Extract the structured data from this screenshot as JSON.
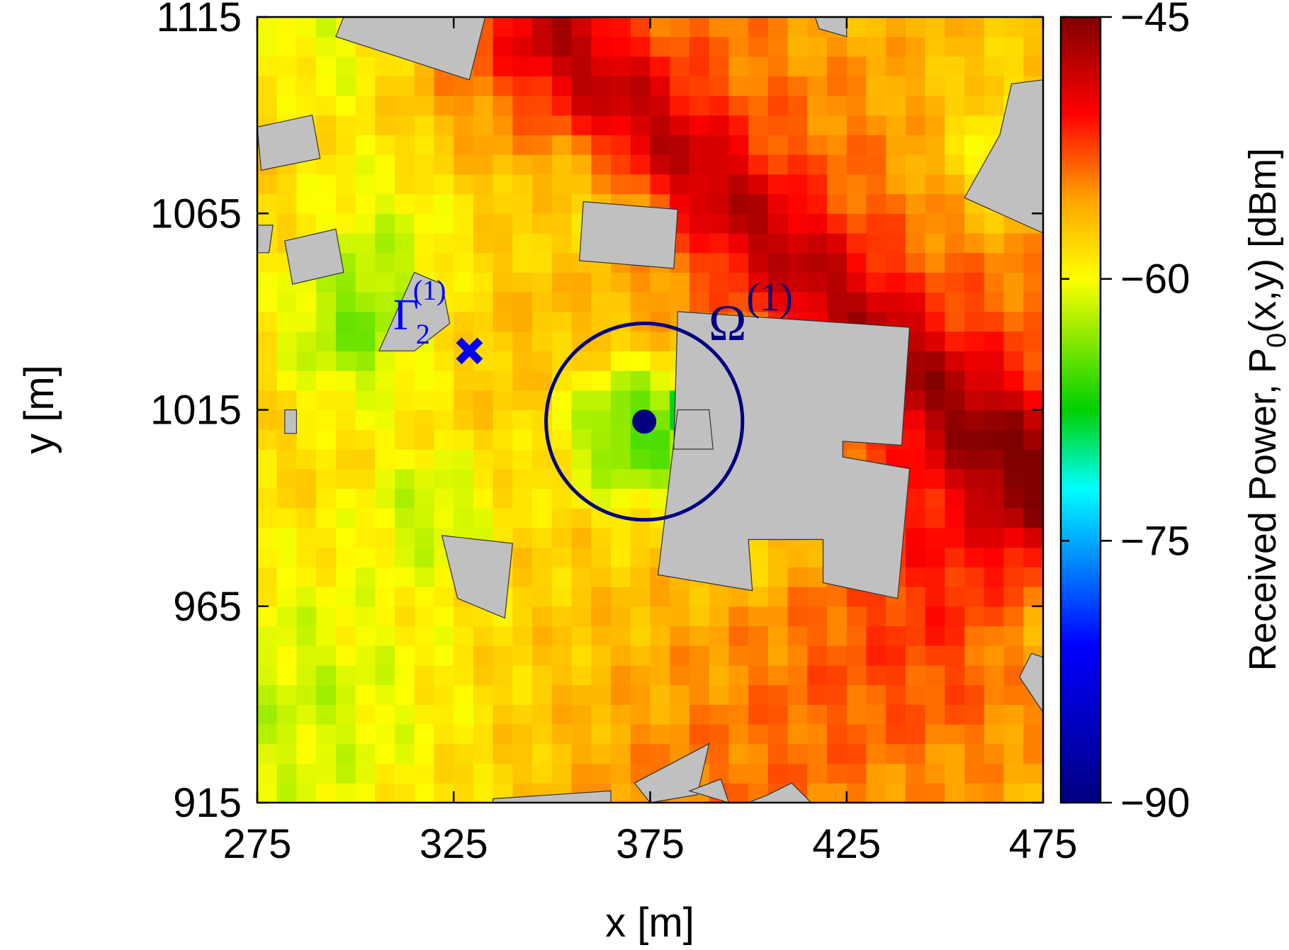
{
  "chart_data": {
    "type": "heatmap",
    "xlabel": "x [m]",
    "ylabel": "y [m]",
    "xlim": [
      275,
      475
    ],
    "ylim": [
      915,
      1115
    ],
    "x_ticks": [
      "275",
      "325",
      "375",
      "425",
      "475"
    ],
    "y_ticks": [
      "915",
      "965",
      "1015",
      "1065",
      "1115"
    ],
    "grid_cell_m": 5,
    "colorbar": {
      "label_prefix": "Received Power, P",
      "label_subscript": "0",
      "label_suffix": "(x,y) [dBm]",
      "min": -90,
      "max": -45,
      "ticks": [
        "−45",
        "−60",
        "−75",
        "−90"
      ],
      "stops": [
        {
          "value": -90,
          "color": "#000080"
        },
        {
          "value": -81,
          "color": "#0000ff"
        },
        {
          "value": -72,
          "color": "#00ffff"
        },
        {
          "value": -67.5,
          "color": "#00d000"
        },
        {
          "value": -60,
          "color": "#ffff00"
        },
        {
          "value": -55.5,
          "color": "#ffa500"
        },
        {
          "value": -50.5,
          "color": "#ff0000"
        },
        {
          "value": -45,
          "color": "#800000"
        }
      ]
    },
    "field_model": {
      "base_dbm": -57.5,
      "ridge": {
        "x1": 350,
        "y1": 1110,
        "x2": 475,
        "y2": 995,
        "sigma_m": 9,
        "peak_dbm": -47.5,
        "halo_sigma_m": 38,
        "halo_dbm": 4.5
      },
      "band": {
        "x1": 395,
        "y1": 915,
        "x2": 475,
        "y2": 985,
        "sigma_m": 30,
        "peak_dbm": 3.5
      },
      "dips": [
        {
          "x": 373,
          "y": 1010,
          "r_m": 14,
          "depth_dbm": -9
        },
        {
          "x": 300,
          "y": 1035,
          "r_m": 14,
          "depth_dbm": -5.5
        },
        {
          "x": 310,
          "y": 1065,
          "r_m": 18,
          "depth_dbm": -4
        },
        {
          "x": 285,
          "y": 940,
          "r_m": 30,
          "depth_dbm": -4
        },
        {
          "x": 295,
          "y": 1110,
          "r_m": 15,
          "depth_dbm": -4.5
        },
        {
          "x": 320,
          "y": 990,
          "r_m": 12,
          "depth_dbm": -4
        },
        {
          "x": 358,
          "y": 1065,
          "r_m": 14,
          "depth_dbm": -3.5
        },
        {
          "x": 465,
          "y": 1080,
          "r_m": 12,
          "depth_dbm": -4
        },
        {
          "x": 405,
          "y": 985,
          "r_m": 12,
          "depth_dbm": -3
        },
        {
          "x": 475,
          "y": 960,
          "r_m": 12,
          "depth_dbm": -4
        }
      ]
    },
    "patches": [
      {
        "x1": 380,
        "y1": 1010,
        "x2": 390,
        "y2": 1020,
        "dbm": -68
      }
    ],
    "buildings": [
      [
        [
          297,
          1115
        ],
        [
          333,
          1115
        ],
        [
          329,
          1099
        ],
        [
          295,
          1110
        ]
      ],
      [
        [
          417,
          1115
        ],
        [
          425,
          1115
        ],
        [
          425,
          1110
        ],
        [
          418,
          1112
        ]
      ],
      [
        [
          275,
          1087
        ],
        [
          289,
          1090
        ],
        [
          291,
          1079
        ],
        [
          276,
          1076
        ]
      ],
      [
        [
          275,
          1062
        ],
        [
          279,
          1062
        ],
        [
          278,
          1055
        ],
        [
          275,
          1055
        ]
      ],
      [
        [
          282,
          1058
        ],
        [
          295,
          1061
        ],
        [
          297,
          1050
        ],
        [
          284,
          1047
        ]
      ],
      [
        [
          315,
          1050
        ],
        [
          322,
          1047
        ],
        [
          324,
          1037
        ],
        [
          315,
          1030
        ],
        [
          306,
          1030
        ]
      ],
      [
        [
          282,
          1015
        ],
        [
          285,
          1015
        ],
        [
          285,
          1009
        ],
        [
          282,
          1009
        ]
      ],
      [
        [
          358,
          1068
        ],
        [
          382,
          1066
        ],
        [
          381,
          1051
        ],
        [
          357,
          1053
        ]
      ],
      [
        [
          467,
          1098
        ],
        [
          475,
          1099
        ],
        [
          475,
          1060
        ],
        [
          455,
          1069
        ],
        [
          464,
          1085
        ]
      ],
      [
        [
          382,
          1040
        ],
        [
          441,
          1036
        ],
        [
          439,
          1006
        ],
        [
          424,
          1007
        ],
        [
          424,
          1003
        ],
        [
          441,
          1000
        ],
        [
          438,
          967
        ],
        [
          419,
          971
        ],
        [
          419,
          982
        ],
        [
          400,
          982
        ],
        [
          401,
          969
        ],
        [
          377,
          973
        ],
        [
          382,
          1015
        ],
        [
          390,
          1015
        ],
        [
          391,
          1005
        ],
        [
          381,
          1005
        ]
      ],
      [
        [
          322,
          983
        ],
        [
          340,
          981
        ],
        [
          338,
          962
        ],
        [
          326,
          967
        ]
      ],
      [
        [
          472,
          953
        ],
        [
          475,
          952
        ],
        [
          475,
          938
        ],
        [
          469,
          947
        ]
      ],
      [
        [
          335,
          916
        ],
        [
          365,
          918
        ],
        [
          365,
          915
        ],
        [
          335,
          915
        ]
      ],
      [
        [
          371,
          920
        ],
        [
          390,
          930
        ],
        [
          387,
          917
        ],
        [
          375,
          915
        ]
      ],
      [
        [
          385,
          918
        ],
        [
          395,
          915
        ],
        [
          393,
          921
        ]
      ],
      [
        [
          400,
          915
        ],
        [
          416,
          915
        ],
        [
          411,
          920
        ],
        [
          405,
          917
        ]
      ]
    ],
    "transmitter": {
      "x": 373.5,
      "y": 1012,
      "radius_m": 25
    },
    "markers": [
      {
        "x": 329,
        "y": 1030
      }
    ],
    "annotations": {
      "omega_base": "Ω",
      "omega_sup": "(1)",
      "gamma_base": "Γ",
      "gamma_sub": "2",
      "gamma_sup": "(1)"
    }
  }
}
